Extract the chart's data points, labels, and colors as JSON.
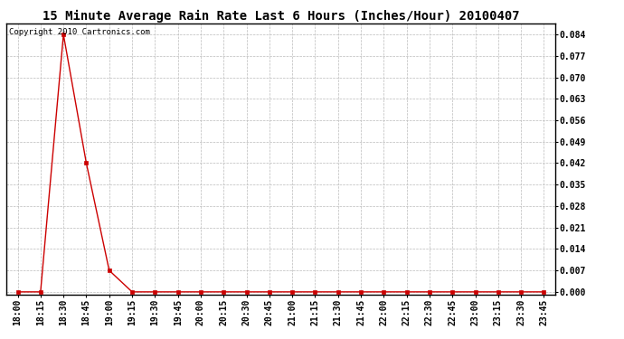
{
  "title": "15 Minute Average Rain Rate Last 6 Hours (Inches/Hour) 20100407",
  "copyright_text": "Copyright 2010 Cartronics.com",
  "x_labels": [
    "18:00",
    "18:15",
    "18:30",
    "18:45",
    "19:00",
    "19:15",
    "19:30",
    "19:45",
    "20:00",
    "20:15",
    "20:30",
    "20:45",
    "21:00",
    "21:15",
    "21:30",
    "21:45",
    "22:00",
    "22:15",
    "22:30",
    "22:45",
    "23:00",
    "23:15",
    "23:30",
    "23:45"
  ],
  "y_values": [
    0.0,
    0.0,
    0.084,
    0.042,
    0.007,
    0.0,
    0.0,
    0.0,
    0.0,
    0.0,
    0.0,
    0.0,
    0.0,
    0.0,
    0.0,
    0.0,
    0.0,
    0.0,
    0.0,
    0.0,
    0.0,
    0.0,
    0.0,
    0.0
  ],
  "y_ticks": [
    0.0,
    0.007,
    0.014,
    0.021,
    0.028,
    0.035,
    0.042,
    0.049,
    0.056,
    0.063,
    0.07,
    0.077,
    0.084
  ],
  "line_color": "#cc0000",
  "marker": "s",
  "marker_size": 2.5,
  "grid_color": "#bbbbbb",
  "background_color": "#ffffff",
  "title_fontsize": 10,
  "tick_fontsize": 7,
  "copyright_fontsize": 6.5,
  "ylim": [
    -0.001,
    0.0875
  ]
}
